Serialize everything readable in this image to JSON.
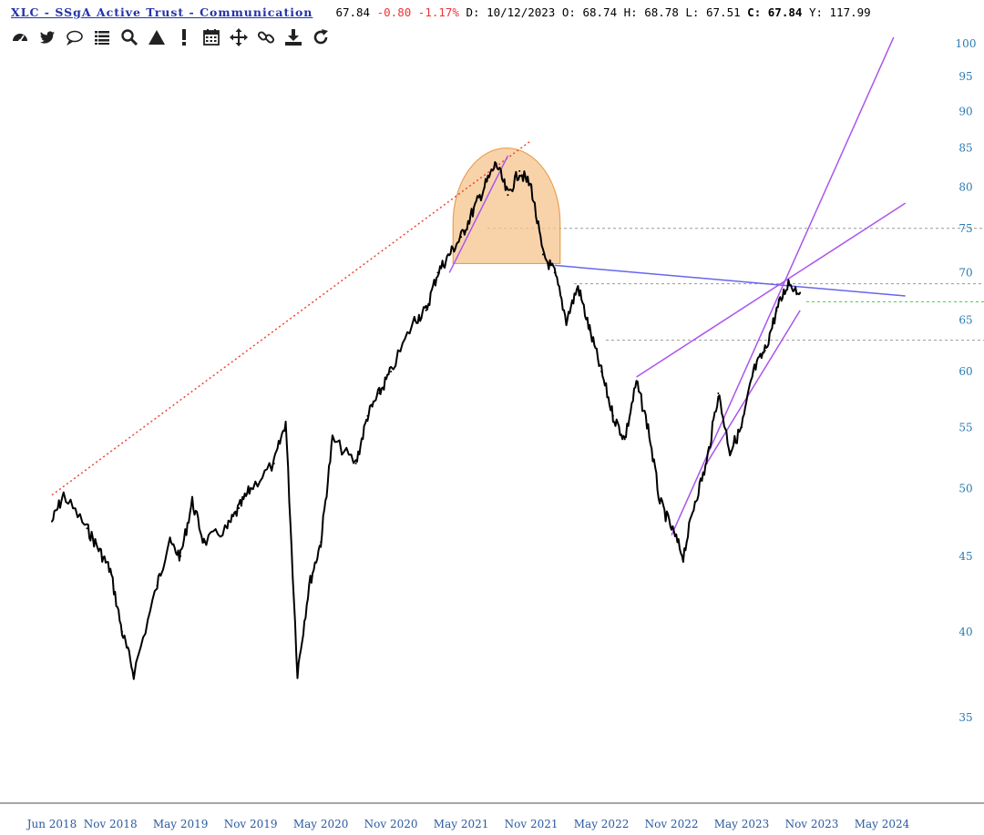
{
  "header": {
    "title": "XLC - SSgA Active Trust - Communication",
    "last": "67.84",
    "change": "-0.80",
    "change_pct": "-1.17%",
    "date_label": "D:",
    "date": "10/12/2023",
    "open_label": "O:",
    "open": "68.74",
    "high_label": "H:",
    "high": "68.78",
    "low_label": "L:",
    "low": "67.51",
    "close_label": "C:",
    "close": "67.84",
    "y_label": "Y:",
    "y": "117.99"
  },
  "toolbar": {
    "icons": [
      "dashboard-icon",
      "twitter-icon",
      "comment-icon",
      "list-icon",
      "search-icon",
      "triangle-icon",
      "exclamation-icon",
      "calendar-icon",
      "move-icon",
      "link-icon",
      "download-icon",
      "refresh-icon"
    ]
  },
  "colors": {
    "price": "#000000",
    "trend_red": "#ee4433",
    "trend_purple": "#aa55ee",
    "trend_blue": "#6666ee",
    "arc_fill": "#f5c48e",
    "arc_stroke": "#e8a050",
    "level_gray": "#999999",
    "level_green": "#44cc44",
    "y_axis_text": "#2a7ab0",
    "x_axis_text": "#2a5aa0"
  },
  "chart_data": {
    "type": "line",
    "scale": "log",
    "ylim": [
      32,
      102
    ],
    "xlim": [
      "2018-06",
      "2024-07"
    ],
    "y_ticks": [
      35,
      40,
      45,
      50,
      55,
      60,
      65,
      70,
      75,
      80,
      85,
      90,
      95,
      100
    ],
    "x_ticks": [
      "Jun 2018",
      "Nov 2018",
      "May 2019",
      "Nov 2019",
      "May 2020",
      "Nov 2020",
      "May 2021",
      "Nov 2021",
      "May 2022",
      "Nov 2022",
      "May 2023",
      "Nov 2023",
      "May 2024"
    ],
    "series": [
      {
        "values_note": "",
        "x": [
          "2018-06",
          "2018-07",
          "2018-09",
          "2018-10",
          "2018-11",
          "2018-12",
          "2019-01",
          "2019-03",
          "2019-04",
          "2019-05",
          "2019-06",
          "2019-07",
          "2019-09",
          "2019-10",
          "2019-11",
          "2020-01",
          "2020-02",
          "2020-03",
          "2020-04",
          "2020-05",
          "2020-06",
          "2020-08",
          "2020-09",
          "2020-10",
          "2020-11",
          "2021-01",
          "2021-02",
          "2021-03",
          "2021-04",
          "2021-05",
          "2021-06",
          "2021-07",
          "2021-08",
          "2021-09",
          "2021-10",
          "2021-11",
          "2021-12",
          "2022-01",
          "2022-02",
          "2022-03",
          "2022-04",
          "2022-05",
          "2022-06",
          "2022-07",
          "2022-08",
          "2022-09",
          "2022-10",
          "2022-11",
          "2022-12",
          "2023-01",
          "2023-02",
          "2023-03",
          "2023-04",
          "2023-05",
          "2023-06",
          "2023-07",
          "2023-08",
          "2023-09",
          "2023-10"
        ],
        "y": [
          47.5,
          49.5,
          47,
          45.5,
          44,
          40,
          37.5,
          43,
          46,
          45,
          49,
          46,
          47,
          48.5,
          50,
          52,
          55.5,
          37.5,
          43,
          46,
          54,
          52,
          56,
          58,
          60,
          65,
          66,
          70,
          72,
          74,
          77,
          80,
          83,
          79,
          82,
          80,
          72,
          70,
          65,
          68.5,
          64,
          60,
          56,
          54,
          59,
          55,
          49,
          47,
          45,
          49,
          52,
          58,
          53,
          55,
          60,
          62,
          66,
          69,
          67.84
        ]
      }
    ],
    "annotations": {
      "horizontal_levels": [
        75,
        68.8,
        66.9,
        63
      ],
      "rounded_top_box": {
        "x_start": "2021-04",
        "x_end": "2022-01",
        "y_top": 85,
        "y_bottom": 71
      },
      "trendlines": [
        {
          "from": [
            "2018-06",
            49.5
          ],
          "to": [
            "2021-11",
            86
          ]
        },
        {
          "from": [
            "2021-04",
            70
          ],
          "to": [
            "2021-09",
            84
          ]
        },
        {
          "from": [
            "2022-01",
            70.8
          ],
          "to": [
            "2024-07",
            67.5
          ]
        },
        {
          "from": [
            "2022-08",
            59.5
          ],
          "to": [
            "2024-07",
            78
          ]
        },
        {
          "from": [
            "2022-11",
            46.5
          ],
          "to": [
            "2024-06",
            101
          ]
        },
        {
          "from": [
            "2023-02",
            52
          ],
          "to": [
            "2023-10",
            66
          ]
        }
      ]
    }
  }
}
